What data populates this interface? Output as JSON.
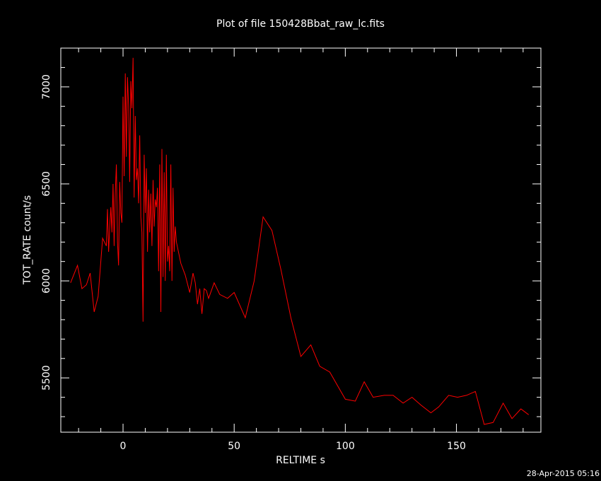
{
  "chart_data": {
    "type": "line",
    "title": "Plot of file 150428Bbat_raw_lc.fits",
    "xlabel": "RELTIME  s",
    "ylabel": "TOT_RATE  count/s",
    "timestamp": "28-Apr-2015 05:16",
    "xlim": [
      -28,
      188
    ],
    "ylim": [
      5220,
      7200
    ],
    "x_ticks": [
      0,
      50,
      100,
      150
    ],
    "x_tick_labels": [
      "0",
      "50",
      "100",
      "150"
    ],
    "y_ticks": [
      5500,
      6000,
      6500,
      7000
    ],
    "y_tick_labels": [
      "5500",
      "6000",
      "6500",
      "7000"
    ],
    "grid": false,
    "colors": {
      "background": "#000000",
      "axes": "#ffffff",
      "series": "#ff0000"
    },
    "series": [
      {
        "x": [
          -23.6,
          -20.5,
          -18.5,
          -16.5,
          -14.8,
          -13.0,
          -11.2,
          -9.2,
          -7.5,
          -7.0,
          -6.5,
          -6.0,
          -5.5,
          -5.0,
          -4.5,
          -4.0,
          -3.5,
          -3.0,
          -2.5,
          -2.0,
          -1.5,
          -1.0,
          -0.5,
          0.0,
          0.5,
          1.0,
          1.5,
          2.0,
          2.5,
          3.0,
          3.5,
          4.0,
          4.5,
          5.0,
          5.5,
          6.0,
          6.5,
          7.0,
          7.5,
          8.0,
          8.5,
          9.0,
          9.5,
          10.0,
          10.5,
          11.0,
          11.5,
          12.0,
          12.5,
          13.0,
          13.5,
          14.0,
          14.5,
          15.0,
          15.5,
          16.0,
          16.5,
          17.0,
          17.5,
          18.0,
          18.5,
          19.0,
          19.5,
          20.0,
          20.5,
          21.0,
          21.5,
          22.0,
          22.5,
          23.0,
          23.5,
          24.0,
          26.0,
          28.0,
          30.0,
          31.5,
          32.5,
          33.5,
          34.5,
          35.5,
          36.5,
          37.5,
          38.5,
          41.0,
          43.5,
          47.0,
          50.0,
          55.0,
          59.0,
          63.0,
          67.0,
          71.0,
          75.5,
          80.0,
          84.5,
          88.5,
          93.0,
          100.0,
          104.5,
          108.5,
          112.5,
          117.5,
          121.5,
          126.0,
          130.0,
          134.0,
          138.5,
          142.0,
          146.5,
          150.5,
          154.5,
          158.5,
          162.5,
          166.5,
          171.0,
          175.0,
          179.0,
          182.5
        ],
        "values": [
          5990,
          6080,
          5960,
          5980,
          6040,
          5840,
          5920,
          6220,
          6180,
          6370,
          6150,
          6280,
          6380,
          6250,
          6500,
          6180,
          6450,
          6600,
          6200,
          6080,
          6510,
          6350,
          6300,
          6950,
          6540,
          7070,
          6640,
          7050,
          6900,
          6510,
          7030,
          6890,
          7150,
          6430,
          6850,
          6520,
          6580,
          6400,
          6750,
          6330,
          6250,
          5790,
          6650,
          6350,
          6580,
          6150,
          6470,
          6250,
          6450,
          6180,
          6520,
          6280,
          6420,
          6380,
          6480,
          6050,
          6600,
          5840,
          6680,
          6020,
          6560,
          6000,
          6650,
          6100,
          6180,
          6050,
          6600,
          6000,
          6480,
          6150,
          6280,
          6200,
          6090,
          6030,
          5940,
          6040,
          5990,
          5880,
          5960,
          5830,
          5960,
          5950,
          5910,
          5990,
          5930,
          5910,
          5940,
          5810,
          6000,
          6330,
          6260,
          6060,
          5810,
          5610,
          5670,
          5560,
          5530,
          5390,
          5380,
          5480,
          5400,
          5410,
          5410,
          5370,
          5400,
          5360,
          5320,
          5350,
          5410,
          5400,
          5410,
          5430,
          5260,
          5270,
          5370,
          5290,
          5340,
          5310
        ]
      }
    ]
  }
}
